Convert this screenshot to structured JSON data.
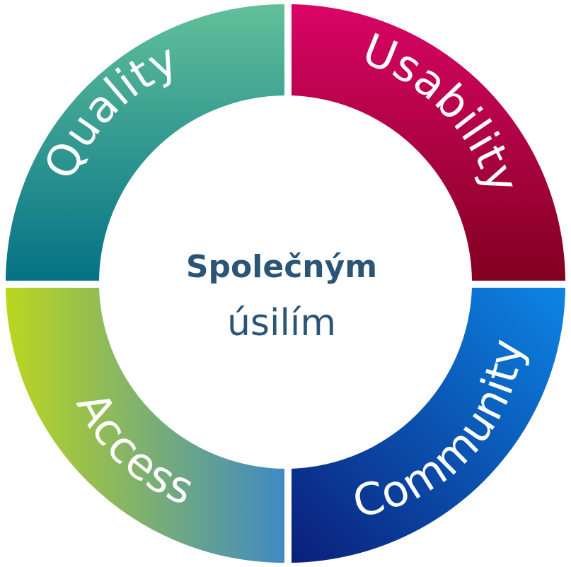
{
  "diagram": {
    "center": {
      "line1": "Společným",
      "line2": "úsilím"
    },
    "segments": [
      {
        "label": "Quality",
        "color_start": "#62c09a",
        "color_end": "#047286"
      },
      {
        "label": "Usability",
        "color_start": "#d90566",
        "color_end": "#820020"
      },
      {
        "label": "Community",
        "color_start": "#0c85e4",
        "color_end": "#0a1f7a"
      },
      {
        "label": "Access",
        "color_start": "#bcd61e",
        "color_end": "#3f8ac3"
      }
    ],
    "text_color": "#2b5577"
  }
}
